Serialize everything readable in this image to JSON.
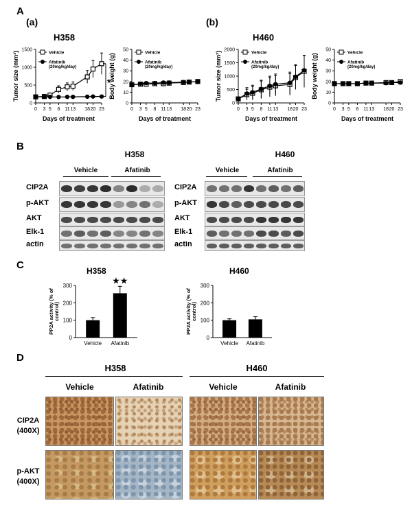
{
  "panels": {
    "A": "A",
    "a": "(a)",
    "b": "(b)",
    "B": "B",
    "C": "C",
    "D": "D"
  },
  "chart_data": [
    {
      "id": "h358-tumor",
      "type": "line",
      "title": "H358",
      "xlabel": "Days of treatment",
      "ylabel": "Tumor size (mm³)",
      "x": [
        0,
        3,
        5,
        8,
        11,
        13,
        18,
        20,
        23
      ],
      "xlim": [
        0,
        23
      ],
      "ylim": [
        0,
        1500
      ],
      "yticks": [
        0,
        500,
        1000,
        1500
      ],
      "series": [
        {
          "name": "Vehicle",
          "marker": "open-square",
          "values": [
            170,
            180,
            220,
            380,
            450,
            470,
            730,
            950,
            1100
          ],
          "errors": [
            30,
            40,
            60,
            100,
            110,
            120,
            180,
            240,
            300
          ]
        },
        {
          "name": "Afatinib (20mg/kg/day)",
          "marker": "filled-circle",
          "values": [
            170,
            170,
            170,
            165,
            170,
            170,
            175,
            180,
            180
          ],
          "errors": [
            20,
            20,
            20,
            20,
            20,
            20,
            20,
            20,
            20
          ]
        }
      ],
      "annotation": "*"
    },
    {
      "id": "h358-weight",
      "type": "line",
      "title": "",
      "xlabel": "Days of treatment",
      "ylabel": "Body weight (g)",
      "x": [
        0,
        3,
        5,
        8,
        11,
        13,
        18,
        20,
        23
      ],
      "xlim": [
        0,
        23
      ],
      "ylim": [
        0,
        50
      ],
      "yticks": [
        0,
        10,
        20,
        30,
        40,
        50
      ],
      "series": [
        {
          "name": "Vehicle",
          "marker": "open-square",
          "values": [
            17,
            17.5,
            17.5,
            18,
            18,
            18.5,
            19,
            19.5,
            20
          ],
          "errors": [
            1,
            1,
            1,
            1,
            1,
            1,
            1,
            1,
            1
          ]
        },
        {
          "name": "Afatinib (20mg/kg/day)",
          "marker": "filled-circle",
          "values": [
            17,
            18,
            18.5,
            18.5,
            19,
            19,
            19.5,
            19.5,
            20
          ],
          "errors": [
            1,
            1,
            1,
            1,
            1,
            1,
            1,
            1,
            1
          ]
        }
      ]
    },
    {
      "id": "h460-tumor",
      "type": "line",
      "title": "H460",
      "xlabel": "Days of treatment",
      "ylabel": "Tumor size (mm³)",
      "x": [
        0,
        3,
        5,
        8,
        11,
        13,
        18,
        20,
        23
      ],
      "xlim": [
        0,
        23
      ],
      "ylim": [
        0,
        2000
      ],
      "yticks": [
        0,
        500,
        1000,
        1500,
        2000
      ],
      "series": [
        {
          "name": "Vehicle",
          "marker": "open-square",
          "values": [
            150,
            310,
            360,
            490,
            590,
            640,
            690,
            950,
            1180
          ],
          "errors": [
            60,
            200,
            250,
            330,
            360,
            380,
            400,
            450,
            600
          ]
        },
        {
          "name": "Afatinib (20mg/kg/day)",
          "marker": "filled-circle",
          "values": [
            150,
            350,
            400,
            520,
            640,
            700,
            750,
            980,
            1220
          ],
          "errors": [
            60,
            220,
            260,
            330,
            360,
            380,
            400,
            450,
            550
          ]
        }
      ]
    },
    {
      "id": "h460-weight",
      "type": "line",
      "title": "",
      "xlabel": "Days of treatment",
      "ylabel": "Body weight (g)",
      "x": [
        0,
        3,
        5,
        8,
        11,
        13,
        18,
        20,
        23
      ],
      "xlim": [
        0,
        23
      ],
      "ylim": [
        0,
        50
      ],
      "yticks": [
        0,
        10,
        20,
        30,
        40,
        50
      ],
      "series": [
        {
          "name": "Vehicle",
          "marker": "open-square",
          "values": [
            18,
            18,
            18,
            18,
            18.5,
            18.5,
            19,
            19,
            20
          ],
          "errors": [
            1,
            1,
            1,
            1,
            1,
            1,
            1,
            1,
            1
          ]
        },
        {
          "name": "Afatinib (20mg/kg/day)",
          "marker": "filled-circle",
          "values": [
            18,
            18,
            18,
            18,
            18.5,
            18.5,
            18.5,
            19,
            19
          ],
          "errors": [
            1,
            1,
            1,
            1,
            1,
            1,
            1,
            1,
            1
          ]
        }
      ]
    },
    {
      "id": "h358-pp2a",
      "type": "bar",
      "title": "H358",
      "ylabel": "PP2A activity (% of control)",
      "categories": [
        "Vehicle",
        "Afatinib"
      ],
      "values": [
        100,
        255
      ],
      "errors": [
        15,
        40
      ],
      "ylim": [
        0,
        300
      ],
      "yticks": [
        0,
        100,
        200,
        300
      ],
      "annotation": "★★"
    },
    {
      "id": "h460-pp2a",
      "type": "bar",
      "title": "H460",
      "ylabel": "PP2A activity (% of control)",
      "categories": [
        "Vehicle",
        "Afatinib"
      ],
      "values": [
        100,
        105
      ],
      "errors": [
        8,
        15
      ],
      "ylim": [
        0,
        300
      ],
      "yticks": [
        0,
        100,
        200,
        300
      ]
    }
  ],
  "western": {
    "h358": {
      "title": "H358",
      "groups": [
        "Vehicle",
        "Afatinib"
      ]
    },
    "h460": {
      "title": "H460",
      "groups": [
        "Vehicle",
        "Afatinib"
      ]
    },
    "rows": [
      "CIP2A",
      "p-AKT",
      "AKT",
      "Elk-1",
      "actin"
    ]
  },
  "ihc": {
    "h358": {
      "title": "H358",
      "cols": [
        "Vehicle",
        "Afatinib"
      ]
    },
    "h460": {
      "title": "H460",
      "cols": [
        "Vehicle",
        "Afatinib"
      ]
    },
    "rows": [
      {
        "line1": "CIP2A",
        "line2": "(400X)"
      },
      {
        "line1": "p-AKT",
        "line2": "(400X)"
      }
    ],
    "colors": {
      "brown_strong": "#b07a45",
      "brown_light": "#d9bf9a",
      "blue": "#9fb3c4",
      "tan": "#c9a06a"
    }
  }
}
